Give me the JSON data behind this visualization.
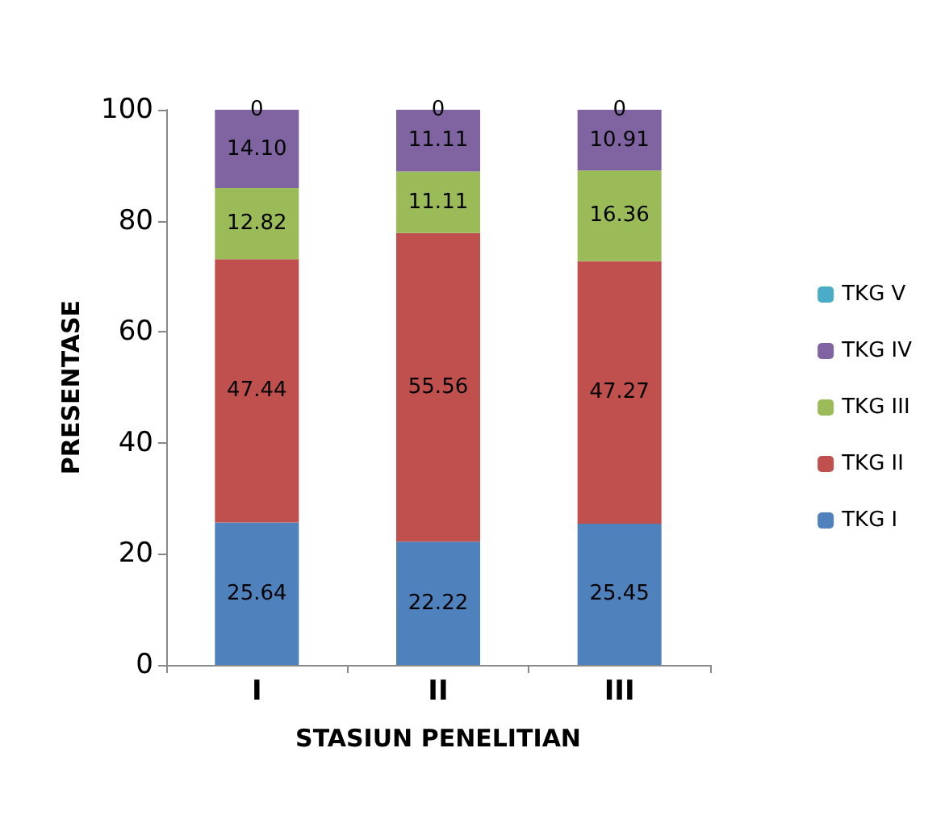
{
  "chart_data": {
    "type": "bar",
    "stacked": true,
    "xlabel": "STASIUN PENELITIAN",
    "ylabel": "PRESENTASE",
    "categories": [
      "I",
      "II",
      "III"
    ],
    "ylim": [
      0,
      100
    ],
    "yticks": [
      0,
      20,
      40,
      60,
      80,
      100
    ],
    "grid": false,
    "legend": "right",
    "series": [
      {
        "name": "TKG I",
        "color": "#4f81bd",
        "values": [
          25.64,
          22.22,
          25.45
        ],
        "value_labels": [
          "25.64",
          "22.22",
          "25.45"
        ]
      },
      {
        "name": "TKG II",
        "color": "#c0504d",
        "values": [
          47.44,
          55.56,
          47.27
        ],
        "value_labels": [
          "47.44",
          "55.56",
          "47.27"
        ]
      },
      {
        "name": "TKG III",
        "color": "#9bbb59",
        "values": [
          12.82,
          11.11,
          16.36
        ],
        "value_labels": [
          "12.82",
          "11.11",
          "16.36"
        ]
      },
      {
        "name": "TKG IV",
        "color": "#8064a2",
        "values": [
          14.1,
          11.11,
          10.91
        ],
        "value_labels": [
          "14.10",
          "11.11",
          "10.91"
        ]
      },
      {
        "name": "TKG V",
        "color": "#4bacc6",
        "values": [
          0,
          0,
          0
        ],
        "value_labels": [
          "0",
          "0",
          "0"
        ]
      }
    ]
  }
}
